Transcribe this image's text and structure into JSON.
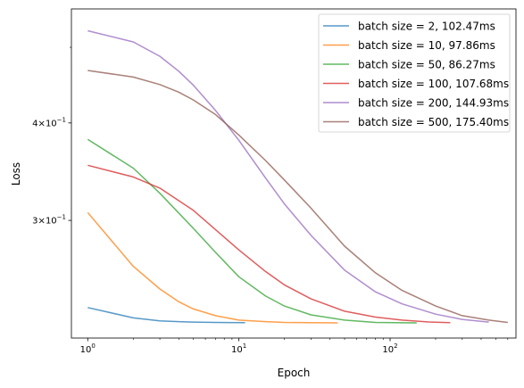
{
  "chart_data": {
    "type": "line",
    "title": "",
    "xlabel": "Epoch",
    "ylabel": "Loss",
    "xscale": "log",
    "yscale": "log",
    "xlim": [
      0.78,
      680
    ],
    "ylim": [
      0.212,
      0.56
    ],
    "grid": false,
    "legend_position": "top-right",
    "x_ticks": [
      {
        "value": 1,
        "base": "10",
        "exp": "0"
      },
      {
        "value": 10,
        "base": "10",
        "exp": "1"
      },
      {
        "value": 100,
        "base": "10",
        "exp": "2"
      }
    ],
    "y_ticks": [
      {
        "value": 0.3,
        "mantissa": "3",
        "base": "10",
        "exp": "−1"
      },
      {
        "value": 0.4,
        "mantissa": "4",
        "base": "10",
        "exp": "−1"
      }
    ],
    "y_minor_ticks": [
      0.5
    ],
    "series": [
      {
        "name": "batch size = 2, 102.47ms",
        "color": "#1f77b4",
        "x": [
          1,
          2,
          3,
          4,
          5,
          7,
          11
        ],
        "y": [
          0.232,
          0.225,
          0.223,
          0.2225,
          0.2222,
          0.222,
          0.2218
        ]
      },
      {
        "name": "batch size = 10, 97.86ms",
        "color": "#ff7f0e",
        "x": [
          1,
          2,
          3,
          4,
          5,
          7,
          10,
          15,
          20,
          30,
          45
        ],
        "y": [
          0.307,
          0.262,
          0.245,
          0.236,
          0.231,
          0.2265,
          0.2235,
          0.2225,
          0.222,
          0.2218,
          0.2217
        ]
      },
      {
        "name": "batch size = 50, 86.27ms",
        "color": "#2ca02c",
        "x": [
          1,
          2,
          3,
          5,
          7,
          10,
          15,
          20,
          30,
          50,
          80,
          150
        ],
        "y": [
          0.381,
          0.35,
          0.325,
          0.293,
          0.273,
          0.254,
          0.24,
          0.233,
          0.227,
          0.2235,
          0.222,
          0.2217
        ]
      },
      {
        "name": "batch size = 100, 107.68ms",
        "color": "#d62728",
        "x": [
          1,
          2,
          3,
          5,
          7,
          10,
          15,
          20,
          30,
          50,
          80,
          120,
          180,
          250
        ],
        "y": [
          0.353,
          0.341,
          0.33,
          0.309,
          0.292,
          0.275,
          0.258,
          0.248,
          0.238,
          0.2295,
          0.2255,
          0.2235,
          0.2223,
          0.2218
        ]
      },
      {
        "name": "batch size = 200, 144.93ms",
        "color": "#9467bd",
        "x": [
          1,
          2,
          3,
          4,
          5,
          7,
          10,
          15,
          20,
          30,
          50,
          80,
          120,
          200,
          300,
          450
        ],
        "y": [
          0.525,
          0.508,
          0.487,
          0.466,
          0.447,
          0.415,
          0.38,
          0.34,
          0.315,
          0.287,
          0.259,
          0.243,
          0.2345,
          0.2275,
          0.224,
          0.2222
        ]
      },
      {
        "name": "batch size = 500, 175.40ms",
        "color": "#8c564b",
        "x": [
          1,
          2,
          3,
          4,
          5,
          7,
          10,
          15,
          20,
          30,
          50,
          80,
          120,
          200,
          300,
          450,
          600
        ],
        "y": [
          0.467,
          0.458,
          0.448,
          0.438,
          0.428,
          0.41,
          0.386,
          0.358,
          0.338,
          0.311,
          0.278,
          0.257,
          0.244,
          0.233,
          0.2265,
          0.2235,
          0.222
        ]
      }
    ]
  }
}
